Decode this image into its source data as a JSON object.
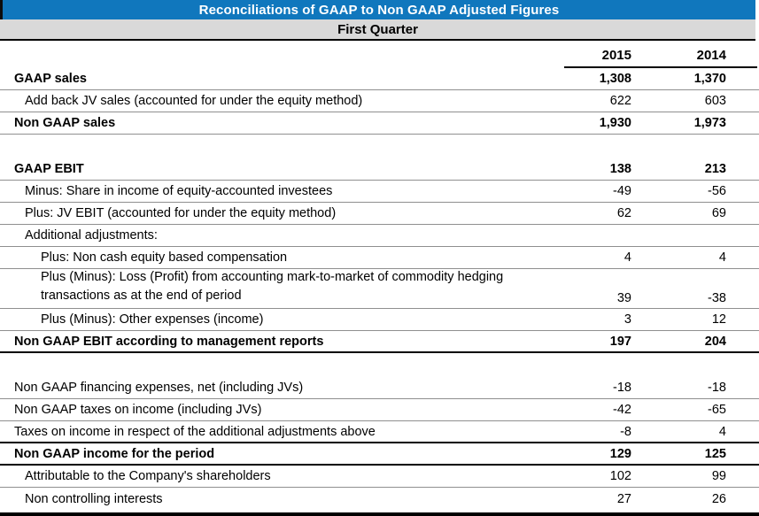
{
  "title_bar": {
    "text": "Reconciliations of GAAP to Non GAAP Adjusted Figures"
  },
  "subtitle_bar": {
    "text": "First Quarter"
  },
  "columns": [
    "2015",
    "2014"
  ],
  "colors": {
    "title_bg": "#1077BD",
    "title_fg": "#FFFFFF",
    "subtitle_bg": "#D9D9D9",
    "separator": "#8F8F8F",
    "strong_rule": "#000000"
  },
  "rows": [
    {
      "type": "data",
      "label": "GAAP sales",
      "indent": 0,
      "bold": true,
      "rule": "normal",
      "values": [
        "1,308",
        "1,370"
      ]
    },
    {
      "type": "data",
      "label": "Add back JV sales (accounted for under the equity method)",
      "indent": 1,
      "bold": false,
      "rule": "normal",
      "values": [
        "622",
        "603"
      ]
    },
    {
      "type": "data",
      "label": "Non GAAP sales",
      "indent": 0,
      "bold": true,
      "rule": "normal",
      "values": [
        "1,930",
        "1,973"
      ]
    },
    {
      "type": "spacer"
    },
    {
      "type": "data",
      "label": "GAAP EBIT",
      "indent": 0,
      "bold": true,
      "rule": "normal",
      "values": [
        "138",
        "213"
      ]
    },
    {
      "type": "data",
      "label": "Minus: Share in income of equity-accounted investees",
      "indent": 1,
      "bold": false,
      "rule": "normal",
      "values": [
        "-49",
        "-56"
      ]
    },
    {
      "type": "data",
      "label": "Plus: JV EBIT (accounted for under the equity method)",
      "indent": 1,
      "bold": false,
      "rule": "normal",
      "values": [
        "62",
        "69"
      ]
    },
    {
      "type": "data",
      "label": "Additional adjustments:",
      "indent": 1,
      "bold": false,
      "rule": "normal",
      "values": [
        "",
        ""
      ]
    },
    {
      "type": "data",
      "label": "Plus: Non cash equity based compensation",
      "indent": 2,
      "bold": false,
      "rule": "normal",
      "values": [
        "4",
        "4"
      ]
    },
    {
      "type": "data",
      "label": "Plus (Minus): Loss (Profit) from accounting mark-to-market of commodity hedging\ntransactions as at the end of period",
      "indent": 2,
      "bold": false,
      "rule": "normal",
      "wrap": true,
      "values": [
        "39",
        "-38"
      ]
    },
    {
      "type": "data",
      "label": "Plus (Minus): Other expenses (income)",
      "indent": 2,
      "bold": false,
      "rule": "normal",
      "values": [
        "3",
        "12"
      ]
    },
    {
      "type": "data",
      "label": "Non GAAP EBIT according to management reports",
      "indent": 0,
      "bold": true,
      "rule": "strong",
      "values": [
        "197",
        "204"
      ]
    },
    {
      "type": "spacer"
    },
    {
      "type": "data",
      "label": "Non GAAP financing expenses, net (including JVs)",
      "indent": 0,
      "bold": false,
      "rule": "normal",
      "values": [
        "-18",
        "-18"
      ]
    },
    {
      "type": "data",
      "label": "Non GAAP taxes on income (including JVs)",
      "indent": 0,
      "bold": false,
      "rule": "normal",
      "values": [
        "-42",
        "-65"
      ]
    },
    {
      "type": "data",
      "label": "Taxes on income in respect of the additional adjustments above",
      "indent": 0,
      "bold": false,
      "rule": "strong",
      "values": [
        "-8",
        "4"
      ]
    },
    {
      "type": "data",
      "label": "Non GAAP income for the period",
      "indent": 0,
      "bold": true,
      "rule": "strong",
      "values": [
        "129",
        "125"
      ]
    },
    {
      "type": "data",
      "label": "Attributable to the Company's shareholders",
      "indent": 1,
      "bold": false,
      "rule": "normal",
      "values": [
        "102",
        "99"
      ]
    },
    {
      "type": "data",
      "label": "Non controlling interests",
      "indent": 1,
      "bold": false,
      "rule": "none",
      "values": [
        "27",
        "26"
      ]
    }
  ],
  "chart_data": {
    "type": "table",
    "title": "Reconciliations of GAAP to Non GAAP Adjusted Figures",
    "subtitle": "First Quarter",
    "categories": [
      "2015",
      "2014"
    ],
    "series": [
      {
        "name": "GAAP sales",
        "values": [
          1308,
          1370
        ]
      },
      {
        "name": "Add back JV sales (accounted for under the equity method)",
        "values": [
          622,
          603
        ]
      },
      {
        "name": "Non GAAP sales",
        "values": [
          1930,
          1973
        ]
      },
      {
        "name": "GAAP EBIT",
        "values": [
          138,
          213
        ]
      },
      {
        "name": "Minus: Share in income of equity-accounted investees",
        "values": [
          -49,
          -56
        ]
      },
      {
        "name": "Plus: JV EBIT (accounted for under the equity method)",
        "values": [
          62,
          69
        ]
      },
      {
        "name": "Plus: Non cash equity based compensation",
        "values": [
          4,
          4
        ]
      },
      {
        "name": "Plus (Minus): Loss (Profit) from accounting mark-to-market of commodity hedging transactions as at the end of period",
        "values": [
          39,
          -38
        ]
      },
      {
        "name": "Plus (Minus): Other expenses (income)",
        "values": [
          3,
          12
        ]
      },
      {
        "name": "Non GAAP EBIT according to management reports",
        "values": [
          197,
          204
        ]
      },
      {
        "name": "Non GAAP financing expenses, net (including JVs)",
        "values": [
          -18,
          -18
        ]
      },
      {
        "name": "Non GAAP taxes on income (including JVs)",
        "values": [
          -42,
          -65
        ]
      },
      {
        "name": "Taxes on income in respect of the additional adjustments above",
        "values": [
          -8,
          4
        ]
      },
      {
        "name": "Non GAAP income for the period",
        "values": [
          129,
          125
        ]
      },
      {
        "name": "Attributable to the Company's shareholders",
        "values": [
          102,
          99
        ]
      },
      {
        "name": "Non controlling interests",
        "values": [
          27,
          26
        ]
      }
    ]
  }
}
